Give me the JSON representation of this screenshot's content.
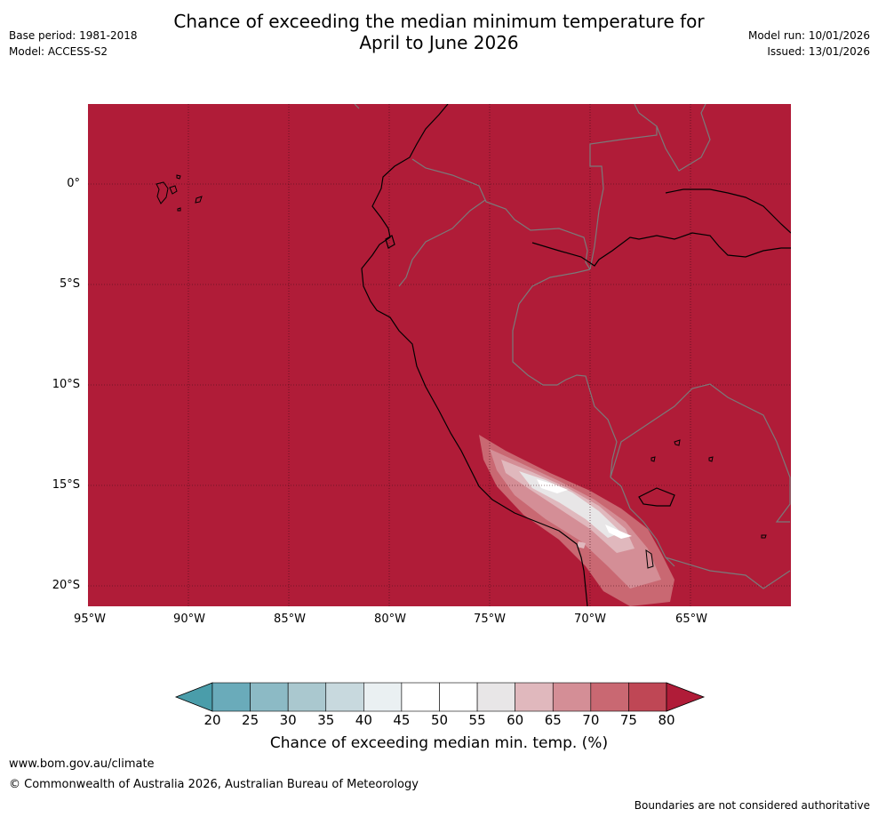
{
  "title": {
    "line1": "Chance of exceeding the median minimum temperature for",
    "line2": "April to June 2026"
  },
  "meta_left": {
    "base_period": "Base period: 1981-2018",
    "model": "Model: ACCESS-S2"
  },
  "meta_right": {
    "model_run": "Model run: 10/01/2026",
    "issued": "Issued: 13/01/2026"
  },
  "map": {
    "lat_labels": [
      "0°",
      "5°S",
      "10°S",
      "15°S",
      "20°S"
    ],
    "lon_labels": [
      "95°W",
      "90°W",
      "85°W",
      "80°W",
      "75°W",
      "70°W",
      "65°W"
    ],
    "background_value_color": "#b01c38",
    "region": "Western South America (Ecuador, Peru, Bolivia, Brazil)"
  },
  "colorbar": {
    "ticks": [
      "20",
      "25",
      "30",
      "35",
      "40",
      "45",
      "50",
      "55",
      "60",
      "65",
      "70",
      "75",
      "80"
    ],
    "colors": [
      "#4a9daa",
      "#6aabba",
      "#8cbac5",
      "#aac8cf",
      "#c8d9de",
      "#eaf0f2",
      "#ffffff",
      "#ffffff",
      "#e8e6e7",
      "#e0b8bd",
      "#d48e96",
      "#c96872",
      "#bf4755",
      "#b01c38"
    ],
    "label": "Chance of exceeding median min. temp. (%)"
  },
  "footer": {
    "website": "www.bom.gov.au/climate",
    "copyright": "© Commonwealth of Australia 2026, Australian Bureau of Meteorology",
    "disclaimer": "Boundaries are not considered authoritative"
  }
}
